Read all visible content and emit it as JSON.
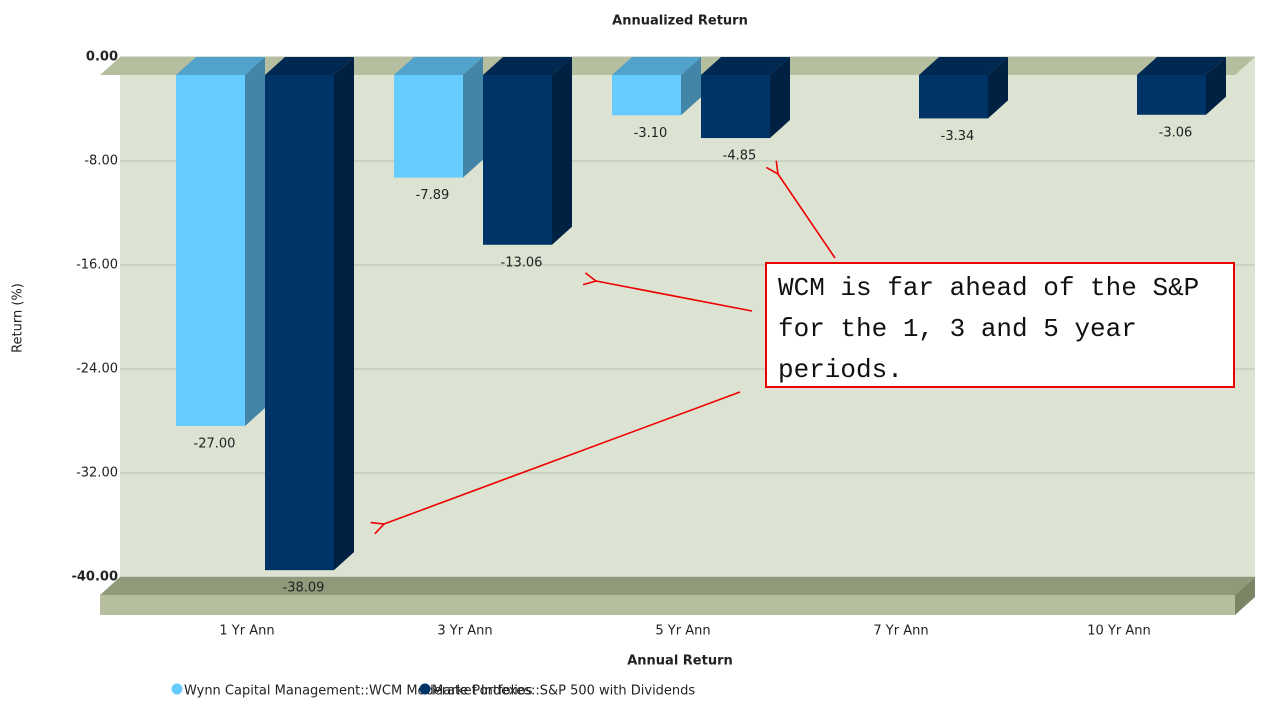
{
  "chart_data": {
    "type": "bar3d",
    "title": "Annualized Return",
    "x_label": "Annual Return",
    "y_label": "Return (%)",
    "categories": [
      "1 Yr Ann",
      "3 Yr Ann",
      "5 Yr Ann",
      "7 Yr Ann",
      "10 Yr Ann"
    ],
    "series": [
      {
        "name": "Wynn Capital Management::WCM Moderate Portfolios",
        "color": "#66ccff",
        "values": [
          -27.0,
          -7.89,
          -3.1,
          null,
          null
        ],
        "value_labels": [
          "-27.00",
          "-7.89",
          "-3.10",
          null,
          null
        ]
      },
      {
        "name": "Market Indexes::S&P 500 with Dividends",
        "color": "#003366",
        "values": [
          -38.09,
          -13.06,
          -4.85,
          -3.34,
          -3.06
        ],
        "value_labels": [
          "-38.09",
          "-13.06",
          "-4.85",
          "-3.34",
          "-3.06"
        ]
      }
    ],
    "ylim": [
      -40,
      0
    ],
    "yticks": [
      {
        "value": 0,
        "label": "0.00"
      },
      {
        "value": -8,
        "label": "-8.00"
      },
      {
        "value": -16,
        "label": "-16.00"
      },
      {
        "value": -24,
        "label": "-24.00"
      },
      {
        "value": -32,
        "label": "-32.00"
      },
      {
        "value": -40,
        "label": "-40.00"
      }
    ],
    "grid": true,
    "annotation": "WCM is far ahead of the S&P for the 1, 3 and 5 year periods."
  }
}
